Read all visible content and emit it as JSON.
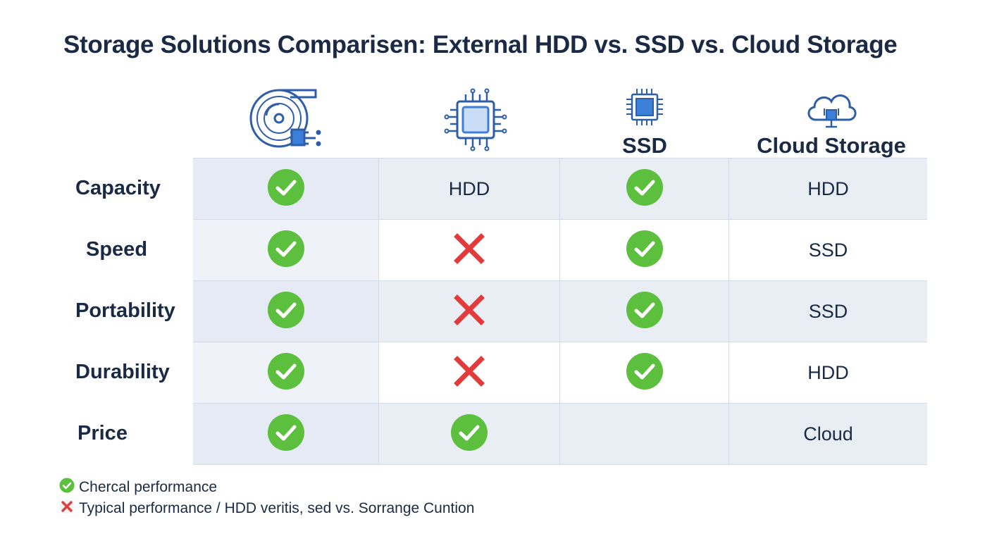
{
  "title": "Storage Solutions Comparisen: External HDD vs. SSD vs. Cloud Storage",
  "columns": [
    {
      "label": "",
      "icon": "hard-disk-icon"
    },
    {
      "label": "",
      "icon": "chip-icon"
    },
    {
      "label": "SSD",
      "icon": "chip-icon"
    },
    {
      "label": "Cloud Storage",
      "icon": "cloud-icon"
    }
  ],
  "rows": [
    {
      "label": "Capacity",
      "cells": [
        {
          "type": "check"
        },
        {
          "type": "text",
          "value": "HDD"
        },
        {
          "type": "check"
        },
        {
          "type": "text",
          "value": "HDD"
        }
      ]
    },
    {
      "label": "Speed",
      "cells": [
        {
          "type": "check"
        },
        {
          "type": "cross"
        },
        {
          "type": "check"
        },
        {
          "type": "text",
          "value": "SSD"
        }
      ]
    },
    {
      "label": "Portability",
      "cells": [
        {
          "type": "check"
        },
        {
          "type": "cross"
        },
        {
          "type": "check"
        },
        {
          "type": "text",
          "value": "SSD"
        }
      ]
    },
    {
      "label": "Durability",
      "cells": [
        {
          "type": "check"
        },
        {
          "type": "cross"
        },
        {
          "type": "check"
        },
        {
          "type": "text",
          "value": "HDD"
        }
      ]
    },
    {
      "label": "Price",
      "cells": [
        {
          "type": "check"
        },
        {
          "type": "check"
        },
        {
          "type": "empty"
        },
        {
          "type": "text",
          "value": "Cloud"
        }
      ]
    }
  ],
  "legend": [
    {
      "icon": "check-icon",
      "text": "Chercal performance"
    },
    {
      "icon": "cross-icon",
      "text": "Typical performance / HDD veritis, sed vs. Sorrange Cuntion"
    }
  ],
  "colors": {
    "check": "#5cbf3d",
    "cross": "#e23b3b",
    "icon_blue": "#2f5ea8",
    "icon_fill": "#3c7fd8",
    "text": "#1b2a44"
  }
}
